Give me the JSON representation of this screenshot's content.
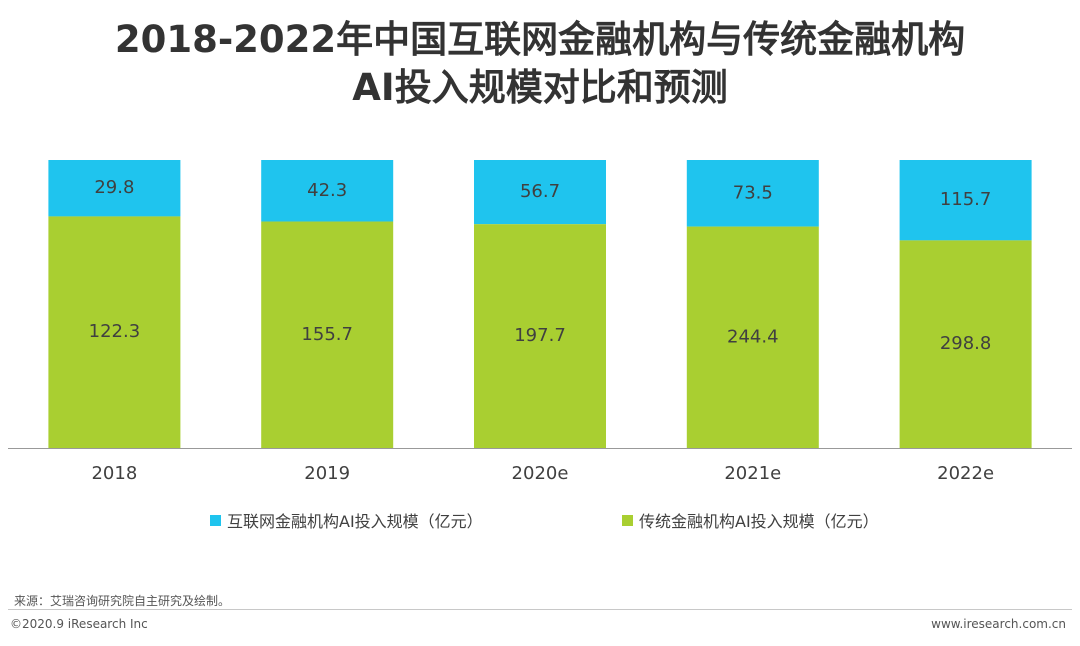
{
  "title_line1": "2018-2022年中国互联网金融机构与传统金融机构",
  "title_line2": "AI投入规模对比和预测",
  "colors": {
    "internet": "#1fc4ee",
    "traditional": "#a9cf31",
    "axis": "#999999",
    "label_text": "#404040"
  },
  "chart_data": {
    "type": "bar",
    "stacked": true,
    "percent_stacked": true,
    "title": "2018-2022年中国互联网金融机构与传统金融机构AI投入规模对比和预测",
    "categories": [
      "2018",
      "2019",
      "2020e",
      "2021e",
      "2022e"
    ],
    "series": [
      {
        "name": "传统金融机构AI投入规模（亿元）",
        "values": [
          122.3,
          155.7,
          197.7,
          244.4,
          298.8
        ]
      },
      {
        "name": "互联网金融机构AI投入规模（亿元）",
        "values": [
          29.8,
          42.3,
          56.7,
          73.5,
          115.7
        ]
      }
    ],
    "legend": [
      "互联网金融机构AI投入规模（亿元）",
      "传统金融机构AI投入规模（亿元）"
    ],
    "legend_position": "bottom"
  },
  "source": "来源：艾瑞咨询研究院自主研究及绘制。",
  "copyright": "©2020.9 iResearch Inc",
  "website": "www.iresearch.com.cn"
}
